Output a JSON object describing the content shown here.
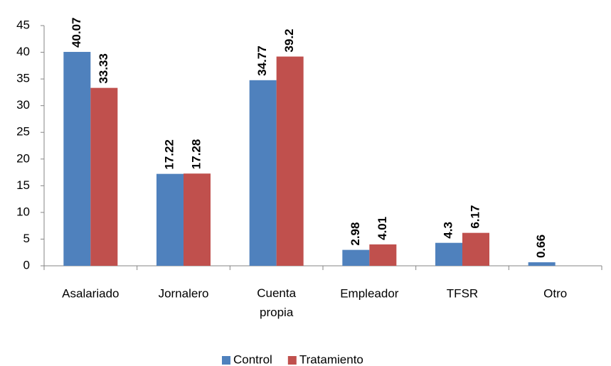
{
  "chart_data": {
    "type": "bar",
    "categories": [
      "Asalariado",
      "Jornalero",
      "Cuenta propia",
      "Empleador",
      "TFSR",
      "Otro"
    ],
    "series": [
      {
        "name": "Control",
        "color": "#4f81bd",
        "values": [
          40.07,
          17.22,
          34.77,
          2.98,
          4.3,
          0.66
        ]
      },
      {
        "name": "Tratamiento",
        "color": "#c0504d",
        "values": [
          33.33,
          17.28,
          39.2,
          4.01,
          6.17,
          null
        ]
      }
    ],
    "ylim": [
      0,
      45
    ],
    "yticks": [
      0,
      5,
      10,
      15,
      20,
      25,
      30,
      35,
      40,
      45
    ],
    "grid": false,
    "legend": "bottom"
  }
}
